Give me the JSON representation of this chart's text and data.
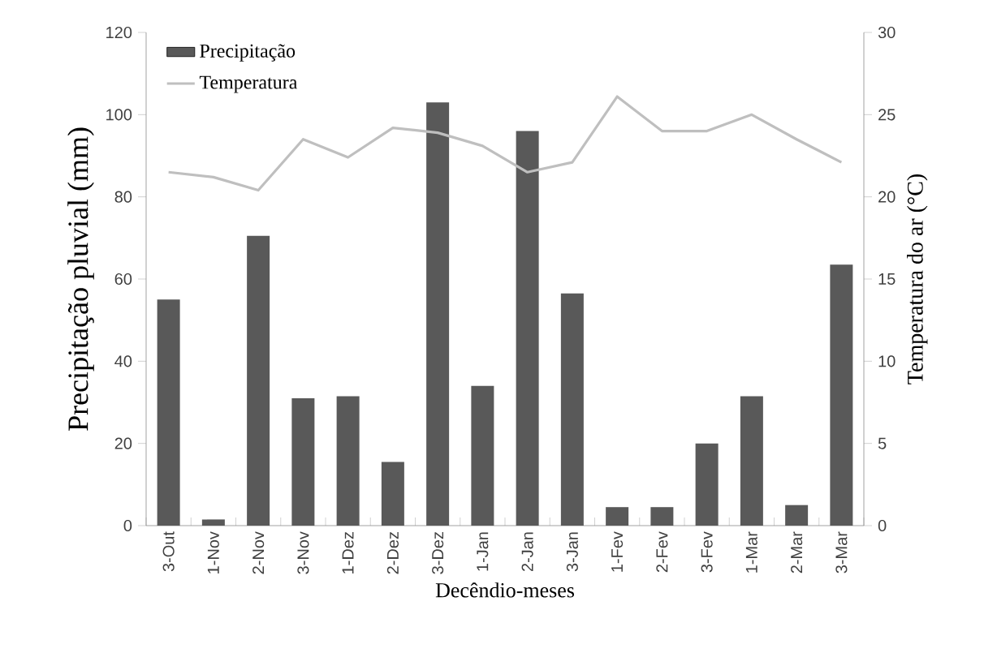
{
  "chart_data": {
    "type": "bar",
    "xlabel": "Decêndio-meses",
    "ylabel": "Precipitação pluvial (mm)",
    "y2label": "Temperatura do ar (°C)",
    "categories": [
      "3-Out",
      "1-Nov",
      "2-Nov",
      "3-Nov",
      "1-Dez",
      "2-Dez",
      "3-Dez",
      "1-Jan",
      "2-Jan",
      "3-Jan",
      "1-Fev",
      "2-Fev",
      "3-Fev",
      "1-Mar",
      "2-Mar",
      "3-Mar"
    ],
    "series": [
      {
        "name": "Precipitação",
        "color": "#595959",
        "values": [
          55,
          1.5,
          70.5,
          31,
          31.5,
          15.5,
          103,
          34,
          96,
          56.5,
          4.5,
          4.5,
          20,
          31.5,
          5,
          63.5
        ]
      },
      {
        "name": "Temperatura",
        "type": "line",
        "axis": "y2",
        "color": "#bfbfbf",
        "values": [
          21.5,
          21.2,
          20.4,
          23.5,
          22.4,
          24.2,
          23.9,
          23.1,
          21.5,
          22.1,
          26.1,
          24.0,
          24.0,
          25.0,
          23.5,
          22.1
        ]
      }
    ],
    "ylim": [
      0,
      120
    ],
    "yticks": [
      0,
      20,
      40,
      60,
      80,
      100,
      120
    ],
    "y2lim": [
      0,
      30
    ],
    "y2ticks": [
      0,
      5,
      10,
      15,
      20,
      25,
      30
    ],
    "legend": "top left",
    "grid": false,
    "marker": "none",
    "line_style": "solid"
  }
}
